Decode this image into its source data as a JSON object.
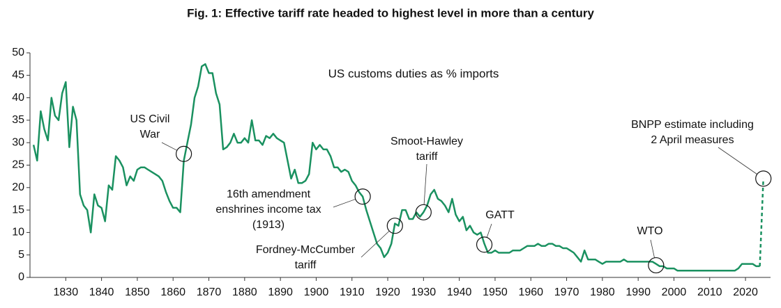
{
  "chart_data": {
    "type": "line",
    "title": "Fig. 1: Effective tariff rate headed to highest level in more than a century",
    "subtitle": "US customs duties as % imports",
    "x": [
      1821,
      1822,
      1823,
      1824,
      1825,
      1826,
      1827,
      1828,
      1829,
      1830,
      1831,
      1832,
      1833,
      1834,
      1835,
      1836,
      1837,
      1838,
      1839,
      1840,
      1841,
      1842,
      1843,
      1844,
      1845,
      1846,
      1847,
      1848,
      1849,
      1850,
      1851,
      1852,
      1853,
      1854,
      1855,
      1856,
      1857,
      1858,
      1859,
      1860,
      1861,
      1862,
      1863,
      1864,
      1865,
      1866,
      1867,
      1868,
      1869,
      1870,
      1871,
      1872,
      1873,
      1874,
      1875,
      1876,
      1877,
      1878,
      1879,
      1880,
      1881,
      1882,
      1883,
      1884,
      1885,
      1886,
      1887,
      1888,
      1889,
      1890,
      1891,
      1892,
      1893,
      1894,
      1895,
      1896,
      1897,
      1898,
      1899,
      1900,
      1901,
      1902,
      1903,
      1904,
      1905,
      1906,
      1907,
      1908,
      1909,
      1910,
      1911,
      1912,
      1913,
      1914,
      1915,
      1916,
      1917,
      1918,
      1919,
      1920,
      1921,
      1922,
      1923,
      1924,
      1925,
      1926,
      1927,
      1928,
      1929,
      1930,
      1931,
      1932,
      1933,
      1934,
      1935,
      1936,
      1937,
      1938,
      1939,
      1940,
      1941,
      1942,
      1943,
      1944,
      1945,
      1946,
      1947,
      1948,
      1949,
      1950,
      1951,
      1952,
      1953,
      1954,
      1955,
      1956,
      1957,
      1958,
      1959,
      1960,
      1961,
      1962,
      1963,
      1964,
      1965,
      1966,
      1967,
      1968,
      1969,
      1970,
      1971,
      1972,
      1973,
      1974,
      1975,
      1976,
      1977,
      1978,
      1979,
      1980,
      1981,
      1982,
      1983,
      1984,
      1985,
      1986,
      1987,
      1988,
      1989,
      1990,
      1991,
      1992,
      1993,
      1994,
      1995,
      1996,
      1997,
      1998,
      1999,
      2000,
      2001,
      2002,
      2003,
      2004,
      2005,
      2006,
      2007,
      2008,
      2009,
      2010,
      2011,
      2012,
      2013,
      2014,
      2015,
      2016,
      2017,
      2018,
      2019,
      2020,
      2021,
      2022,
      2023,
      2024,
      2025
    ],
    "series": [
      {
        "color": "#1a9160",
        "dashed": false,
        "values": [
          29.5,
          26,
          37,
          33,
          30.5,
          40,
          36,
          35,
          41,
          43.5,
          29,
          38,
          35,
          18.5,
          16,
          15,
          10,
          18.5,
          16,
          15.5,
          12.5,
          20.5,
          19.5,
          27,
          26,
          24.5,
          20.5,
          22.5,
          21.5,
          24,
          24.5,
          24.5,
          24,
          23.5,
          23,
          22.5,
          21.5,
          19,
          17,
          15.5,
          15.5,
          14.5,
          26,
          30,
          34,
          40,
          42.5,
          47,
          47.5,
          45.5,
          45.5,
          41,
          38.5,
          28.5,
          29,
          30,
          32,
          30,
          30,
          31,
          30,
          35,
          30.5,
          30.5,
          29.5,
          31.5,
          31,
          32,
          31,
          30.5,
          30,
          26,
          22,
          24,
          21,
          21,
          21.5,
          23,
          30,
          28.5,
          29.5,
          28.5,
          28.5,
          27,
          24.5,
          24.5,
          23.5,
          24,
          23.5,
          21.5,
          20.5,
          19,
          18,
          15,
          12.5,
          10,
          7.5,
          6.5,
          4.5,
          5.5,
          7.5,
          12,
          11.5,
          15,
          15,
          13,
          13,
          14.5,
          13.5,
          14.5,
          16,
          18.5,
          19.5,
          17.5,
          17,
          16,
          14.5,
          17.5,
          14,
          12.5,
          13.5,
          10.5,
          11.5,
          10,
          9.5,
          10,
          7.5,
          5.5,
          5.5,
          6,
          5.5,
          5.5,
          5.5,
          5.5,
          6,
          6,
          6,
          6.5,
          7,
          7,
          7,
          7.5,
          7,
          7,
          7.5,
          7.5,
          7,
          7,
          6.5,
          6.5,
          6,
          5.5,
          4.5,
          3.5,
          6,
          4,
          4,
          4,
          3.5,
          3,
          3.5,
          3.5,
          3.5,
          3.5,
          3.5,
          4,
          3.5,
          3.5,
          3.5,
          3.5,
          3.5,
          3.5,
          3.5,
          3.5,
          3,
          2.5,
          2.5,
          2,
          2,
          2,
          1.5,
          1.5,
          1.5,
          1.5,
          1.5,
          1.5,
          1.5,
          1.5,
          1.5,
          1.5,
          1.5,
          1.5,
          1.5,
          1.5,
          1.5,
          1.5,
          1.5,
          2,
          3,
          3,
          3,
          3,
          2.5,
          2.5,
          null
        ]
      },
      {
        "color": "#1a9160",
        "dashed": true,
        "values": [
          null,
          null,
          null,
          null,
          null,
          null,
          null,
          null,
          null,
          null,
          null,
          null,
          null,
          null,
          null,
          null,
          null,
          null,
          null,
          null,
          null,
          null,
          null,
          null,
          null,
          null,
          null,
          null,
          null,
          null,
          null,
          null,
          null,
          null,
          null,
          null,
          null,
          null,
          null,
          null,
          null,
          null,
          null,
          null,
          null,
          null,
          null,
          null,
          null,
          null,
          null,
          null,
          null,
          null,
          null,
          null,
          null,
          null,
          null,
          null,
          null,
          null,
          null,
          null,
          null,
          null,
          null,
          null,
          null,
          null,
          null,
          null,
          null,
          null,
          null,
          null,
          null,
          null,
          null,
          null,
          null,
          null,
          null,
          null,
          null,
          null,
          null,
          null,
          null,
          null,
          null,
          null,
          null,
          null,
          null,
          null,
          null,
          null,
          null,
          null,
          null,
          null,
          null,
          null,
          null,
          null,
          null,
          null,
          null,
          null,
          null,
          null,
          null,
          null,
          null,
          null,
          null,
          null,
          null,
          null,
          null,
          null,
          null,
          null,
          null,
          null,
          null,
          null,
          null,
          null,
          null,
          null,
          null,
          null,
          null,
          null,
          null,
          null,
          null,
          null,
          null,
          null,
          null,
          null,
          null,
          null,
          null,
          null,
          null,
          null,
          null,
          null,
          null,
          null,
          null,
          null,
          null,
          null,
          null,
          null,
          null,
          null,
          null,
          null,
          null,
          null,
          null,
          null,
          null,
          null,
          null,
          null,
          null,
          null,
          null,
          null,
          null,
          null,
          null,
          null,
          null,
          null,
          null,
          null,
          null,
          null,
          null,
          null,
          null,
          null,
          null,
          null,
          null,
          null,
          null,
          null,
          null,
          null,
          null,
          null,
          null,
          null,
          null,
          2.5,
          22
        ]
      }
    ],
    "xlim": [
      1820,
      2027
    ],
    "ylim": [
      0,
      50
    ],
    "xticks": [
      1830,
      1840,
      1850,
      1860,
      1870,
      1880,
      1890,
      1900,
      1910,
      1920,
      1930,
      1940,
      1950,
      1960,
      1970,
      1980,
      1990,
      2000,
      2010,
      2020
    ],
    "yticks": [
      0,
      5,
      10,
      15,
      20,
      25,
      30,
      35,
      40,
      45,
      50
    ],
    "grid": false,
    "annotations": [
      {
        "text": [
          "US Civil",
          "War"
        ],
        "x": 1863,
        "y": 27.5
      },
      {
        "text": [
          "16th amendment",
          "enshrines income tax",
          "(1913)"
        ],
        "x": 1913,
        "y": 18
      },
      {
        "text": [
          "Fordney-McCumber",
          "tariff"
        ],
        "x": 1922,
        "y": 11.5
      },
      {
        "text": [
          "Smoot-Hawley",
          "tariff"
        ],
        "x": 1930,
        "y": 14.5
      },
      {
        "text": [
          "GATT"
        ],
        "x": 1947,
        "y": 7.3
      },
      {
        "text": [
          "WTO"
        ],
        "x": 1995,
        "y": 2.7
      },
      {
        "text": [
          "BNPP estimate including",
          "2 April measures"
        ],
        "x": 2025,
        "y": 22
      }
    ]
  }
}
